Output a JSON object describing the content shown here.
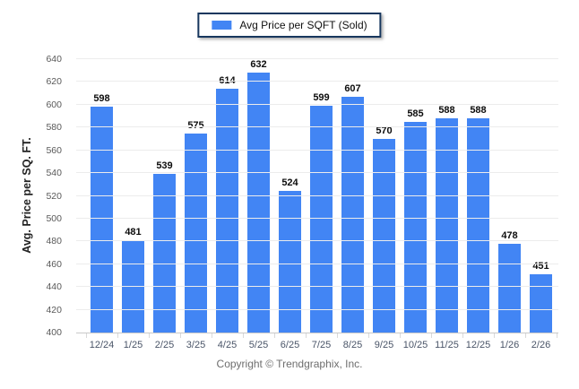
{
  "legend": {
    "label": "Avg Price per SQFT (Sold)",
    "swatch_color": "#4285f4"
  },
  "chart_data": {
    "type": "bar",
    "title": "",
    "xlabel": "",
    "ylabel": "Avg. Price per SQ. FT.",
    "categories": [
      "12/24",
      "1/25",
      "2/25",
      "3/25",
      "4/25",
      "5/25",
      "6/25",
      "7/25",
      "8/25",
      "9/25",
      "10/25",
      "11/25",
      "12/25",
      "1/26",
      "2/26"
    ],
    "series": [
      {
        "name": "Avg Price per SQFT (Sold)",
        "color": "#4285f4",
        "values": [
          598,
          481,
          539,
          575,
          614,
          632,
          524,
          599,
          607,
          570,
          585,
          588,
          588,
          478,
          451
        ]
      }
    ],
    "ylim": [
      400,
      640
    ],
    "ytick_step": 20,
    "yticks": [
      400,
      420,
      440,
      460,
      480,
      500,
      520,
      540,
      560,
      580,
      600,
      620,
      640
    ],
    "grid": true,
    "legend_position": "top",
    "value_labels_shown": true
  },
  "footer": {
    "copyright": "Copyright © Trendgraphix, Inc."
  }
}
